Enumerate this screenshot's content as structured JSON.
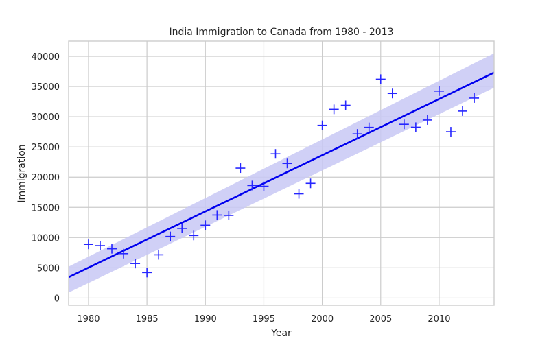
{
  "chart_data": {
    "type": "scatter",
    "title": "India Immigration to Canada from 1980 - 2013",
    "xlabel": "Year",
    "ylabel": "Immigration",
    "xlim": [
      1978.3,
      2014.7
    ],
    "ylim": [
      -1200,
      42500
    ],
    "xticks": [
      1980,
      1985,
      1990,
      1995,
      2000,
      2005,
      2010
    ],
    "yticks": [
      0,
      5000,
      10000,
      15000,
      20000,
      25000,
      30000,
      35000,
      40000
    ],
    "grid": true,
    "marker": "+",
    "colors": {
      "points": "#2626ff",
      "line": "#0000ee",
      "band": "#c8c8f5"
    },
    "series": [
      {
        "x": [
          1980,
          1981,
          1982,
          1983,
          1984,
          1985,
          1986,
          1987,
          1988,
          1989,
          1990,
          1991,
          1992,
          1993,
          1994,
          1995,
          1996,
          1997,
          1998,
          1999,
          2000,
          2001,
          2002,
          2003,
          2004,
          2005,
          2006,
          2007,
          2008,
          2009,
          2010,
          2011,
          2012,
          2013
        ],
        "y": [
          8880,
          8670,
          8147,
          7338,
          5704,
          4211,
          7150,
          10189,
          11522,
          10343,
          12041,
          13734,
          13673,
          21496,
          18620,
          18489,
          23859,
          22268,
          17241,
          18974,
          28572,
          31223,
          31889,
          27155,
          28235,
          36210,
          33848,
          28742,
          28261,
          29456,
          34235,
          27509,
          30933,
          33087
        ]
      }
    ],
    "regression": {
      "x_range": [
        1978.3,
        2014.7
      ],
      "y_start": 3450,
      "y_end": 37300,
      "ci_upper_start": 5200,
      "ci_upper_end": 40500,
      "ci_lower_start": 900,
      "ci_lower_end": 34800
    }
  }
}
